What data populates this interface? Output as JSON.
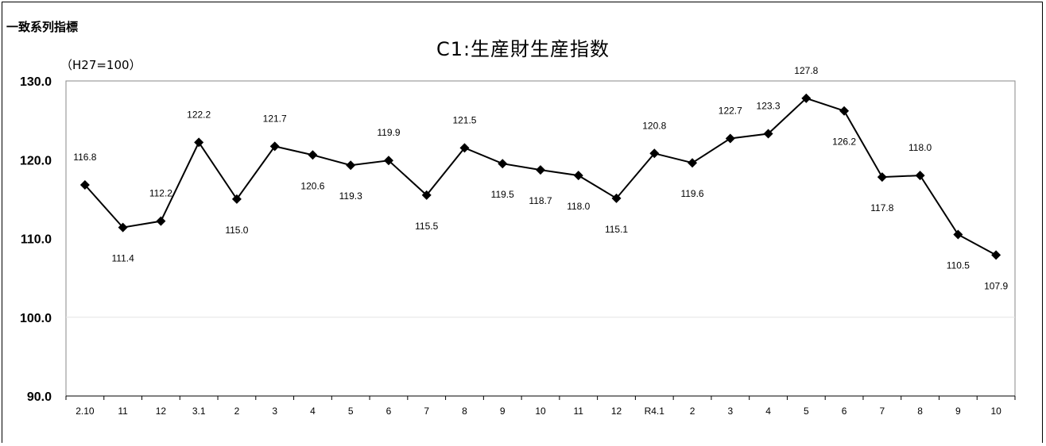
{
  "header": {
    "series_label": "一致系列指標",
    "unit": "（H27=100）"
  },
  "chart_data": {
    "type": "line",
    "title": "C1:生産財生産指数",
    "xlabel": "",
    "ylabel": "",
    "ylim": [
      90,
      130
    ],
    "yticks": [
      "90.0",
      "100.0",
      "110.0",
      "120.0",
      "130.0"
    ],
    "categories": [
      "2.10",
      "11",
      "12",
      "3.1",
      "2",
      "3",
      "4",
      "5",
      "6",
      "7",
      "8",
      "9",
      "10",
      "11",
      "12",
      "R4.1",
      "2",
      "3",
      "4",
      "5",
      "6",
      "7",
      "8",
      "9",
      "10"
    ],
    "series": [
      {
        "values": [
          116.8,
          111.4,
          112.2,
          122.2,
          115.0,
          121.7,
          120.6,
          119.3,
          119.9,
          115.5,
          121.5,
          119.5,
          118.7,
          118.0,
          115.1,
          120.8,
          119.6,
          122.7,
          123.3,
          127.8,
          126.2,
          117.8,
          118.0,
          110.5,
          107.9
        ],
        "labels": [
          "116.8",
          "111.4",
          "112.2",
          "122.2",
          "115.0",
          "121.7",
          "120.6",
          "119.3",
          "119.9",
          "115.5",
          "121.5",
          "119.5",
          "118.7",
          "118.0",
          "115.1",
          "120.8",
          "119.6",
          "122.7",
          "123.3",
          "127.8",
          "126.2",
          "117.8",
          "118.0",
          "110.5",
          "107.9"
        ],
        "label_side": [
          "above",
          "below",
          "above",
          "above",
          "below",
          "above",
          "below",
          "below",
          "above",
          "below",
          "above",
          "below",
          "below",
          "below",
          "below",
          "above",
          "below",
          "above",
          "above",
          "above",
          "below",
          "below",
          "above",
          "below",
          "below"
        ]
      }
    ],
    "grid": false,
    "legend": "none",
    "colors": {
      "line": "#000000",
      "marker": "#000000",
      "axis": "#888888"
    }
  }
}
